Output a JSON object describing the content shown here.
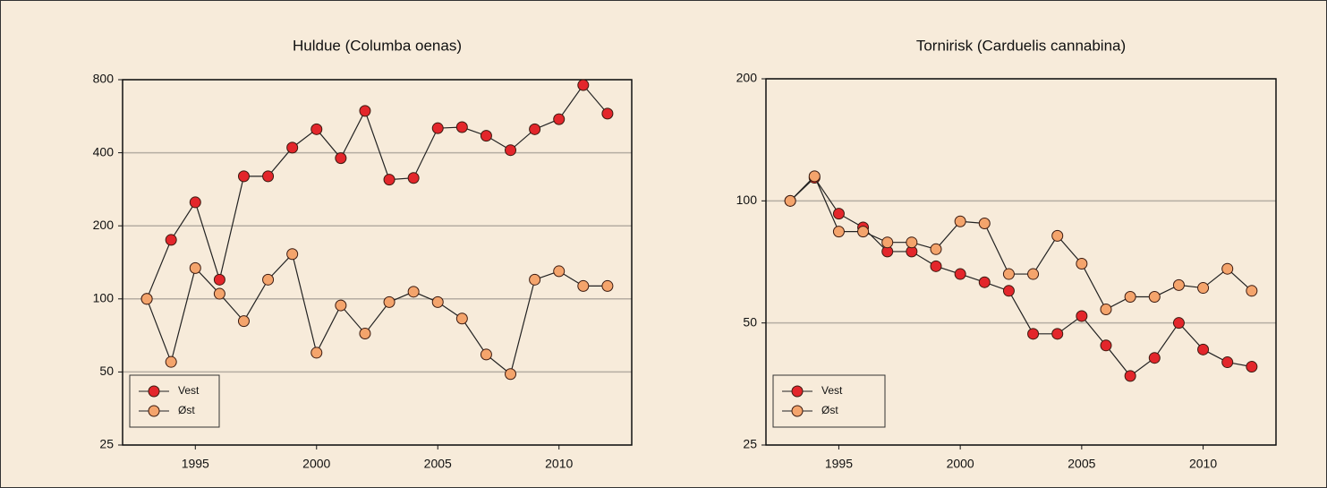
{
  "chart_data": [
    {
      "type": "line",
      "title": "Huldue (Columba oenas)",
      "log_scale": true,
      "grid": true,
      "legend": "lower left",
      "x": [
        1993,
        1994,
        1995,
        1996,
        1997,
        1998,
        1999,
        2000,
        2001,
        2002,
        2003,
        2004,
        2005,
        2006,
        2007,
        2008,
        2009,
        2010,
        2011,
        2012
      ],
      "series": [
        {
          "name": "Vest",
          "color": "#e3262b",
          "values": [
            100,
            175,
            250,
            120,
            320,
            320,
            420,
            500,
            380,
            595,
            310,
            315,
            505,
            510,
            470,
            410,
            500,
            550,
            760,
            580
          ]
        },
        {
          "name": "Øst",
          "color": "#f4a46c",
          "values": [
            100,
            55,
            134,
            105,
            81,
            120,
            153,
            60,
            94,
            72,
            97,
            107,
            97,
            83,
            59,
            49,
            120,
            130,
            113,
            113
          ]
        }
      ],
      "xlim": [
        1992,
        2013
      ],
      "xticks": [
        1995,
        2000,
        2005,
        2010
      ],
      "ylim": [
        25,
        800
      ],
      "yticks": [
        25,
        50,
        100,
        200,
        400,
        800
      ]
    },
    {
      "type": "line",
      "title": "Tornirisk (Carduelis cannabina)",
      "log_scale": true,
      "grid": true,
      "legend": "lower left",
      "x": [
        1993,
        1994,
        1995,
        1996,
        1997,
        1998,
        1999,
        2000,
        2001,
        2002,
        2003,
        2004,
        2005,
        2006,
        2007,
        2008,
        2009,
        2010,
        2011,
        2012
      ],
      "series": [
        {
          "name": "Vest",
          "color": "#e3262b",
          "values": [
            100,
            114,
            93,
            86,
            75,
            75,
            69,
            66,
            63,
            60,
            47,
            47,
            52,
            44,
            37,
            41,
            50,
            43,
            40,
            39
          ]
        },
        {
          "name": "Øst",
          "color": "#f4a46c",
          "values": [
            100,
            115,
            84,
            84,
            79,
            79,
            76,
            89,
            88,
            66,
            66,
            82,
            70,
            54,
            58,
            58,
            62,
            61,
            68,
            60
          ]
        }
      ],
      "xlim": [
        1992,
        2013
      ],
      "xticks": [
        1995,
        2000,
        2005,
        2010
      ],
      "ylim": [
        25,
        200
      ],
      "yticks": [
        25,
        50,
        100,
        200
      ]
    }
  ]
}
